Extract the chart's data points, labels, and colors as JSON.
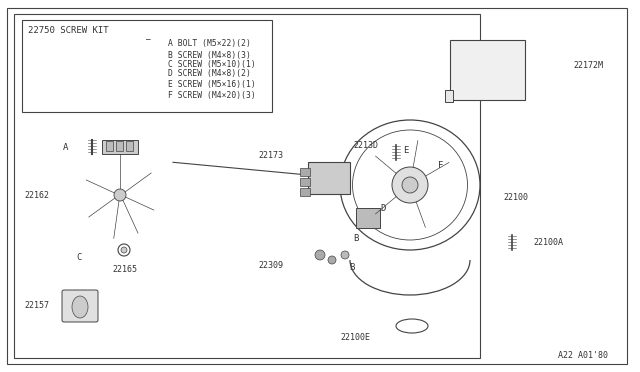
{
  "bg_color": "#ffffff",
  "lc": "#444444",
  "tc": "#333333",
  "diagram_code": "A22 A01'80",
  "screw_kit_label": "22750 SCREW KIT",
  "screw_items": [
    "A BOLT (M5×22)(2)",
    "B SCREW (M4×8)(3)",
    "C SCREW (M5×10)(1)",
    "D SCREW (M4×8)(2)",
    "E SCREW (M5×16)(1)",
    "F SCREW (M4×20)(3)"
  ]
}
